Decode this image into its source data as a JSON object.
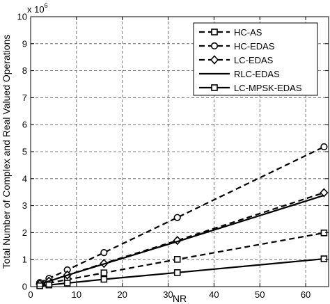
{
  "chart_data": {
    "type": "line",
    "title": "",
    "xlabel": "NR",
    "ylabel": "Total Number of Complex and Real Valued Operations",
    "y_exponent_label": "x 10",
    "y_exponent_power": "6",
    "xlim": [
      0,
      65
    ],
    "ylim": [
      0,
      10
    ],
    "x_ticks": [
      0,
      10,
      20,
      30,
      40,
      50,
      60
    ],
    "y_ticks": [
      0,
      1,
      2,
      3,
      4,
      5,
      6,
      7,
      8,
      9,
      10
    ],
    "grid": true,
    "legend_position": "top-right",
    "series": [
      {
        "name": "HC-AS",
        "marker": "square",
        "dash": "dashed",
        "x": [
          2,
          4,
          8,
          16,
          32,
          64
        ],
        "y": [
          0.07,
          0.13,
          0.26,
          0.51,
          1.01,
          1.99
        ]
      },
      {
        "name": "HC-EDAS",
        "marker": "circle",
        "dash": "dashed",
        "x": [
          2,
          4,
          8,
          16,
          32,
          64
        ],
        "y": [
          0.15,
          0.3,
          0.62,
          1.26,
          2.56,
          5.18
        ]
      },
      {
        "name": "LC-EDAS",
        "marker": "diamond",
        "dash": "dashed",
        "x": [
          2,
          4,
          8,
          16,
          32,
          64
        ],
        "y": [
          0.1,
          0.2,
          0.43,
          0.86,
          1.71,
          3.48
        ]
      },
      {
        "name": "RLC-EDAS",
        "marker": "none",
        "dash": "solid",
        "x": [
          2,
          4,
          8,
          16,
          32,
          64
        ],
        "y": [
          0.1,
          0.2,
          0.42,
          0.84,
          1.67,
          3.38
        ]
      },
      {
        "name": "LC-MPSK-EDAS",
        "marker": "square",
        "dash": "solid",
        "x": [
          2,
          4,
          8,
          16,
          32,
          64
        ],
        "y": [
          0.03,
          0.06,
          0.13,
          0.27,
          0.52,
          1.03
        ]
      }
    ]
  }
}
